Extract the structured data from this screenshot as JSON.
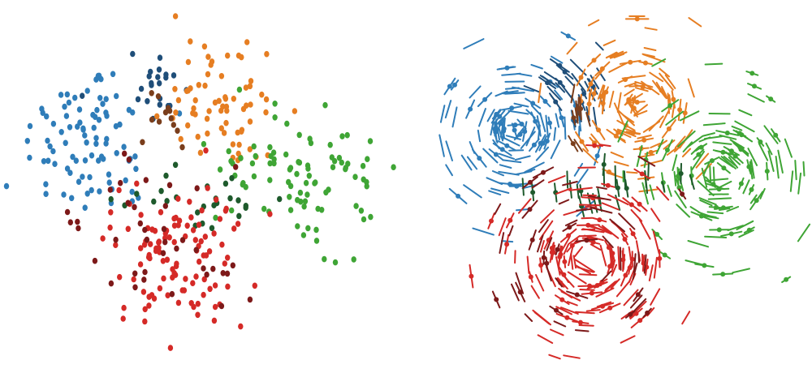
{
  "chart_data": [
    {
      "type": "scatter",
      "title": "",
      "xlabel": "",
      "ylabel": "",
      "grid": false,
      "legend": "none",
      "axes_visible": false,
      "series": [
        {
          "color": "#2F7DB9"
        },
        {
          "color": "#1F4E79"
        },
        {
          "color": "#E67E22"
        },
        {
          "color": "#7A3E1C"
        },
        {
          "color": "#3FA535"
        },
        {
          "color": "#1E5A2C"
        },
        {
          "color": "#D52A27"
        },
        {
          "color": "#7D1919"
        }
      ]
    },
    {
      "type": "scatter",
      "title": "",
      "xlabel": "",
      "ylabel": "",
      "grid": false,
      "legend": "none",
      "axes_visible": false,
      "marker_style": "point-with-tangent-segment",
      "series": [
        {
          "color": "#2F7DB9"
        },
        {
          "color": "#1F4E79"
        },
        {
          "color": "#E67E22"
        },
        {
          "color": "#7A3E1C"
        },
        {
          "color": "#3FA535"
        },
        {
          "color": "#1E5A2C"
        },
        {
          "color": "#D52A27"
        },
        {
          "color": "#7D1919"
        }
      ]
    }
  ]
}
